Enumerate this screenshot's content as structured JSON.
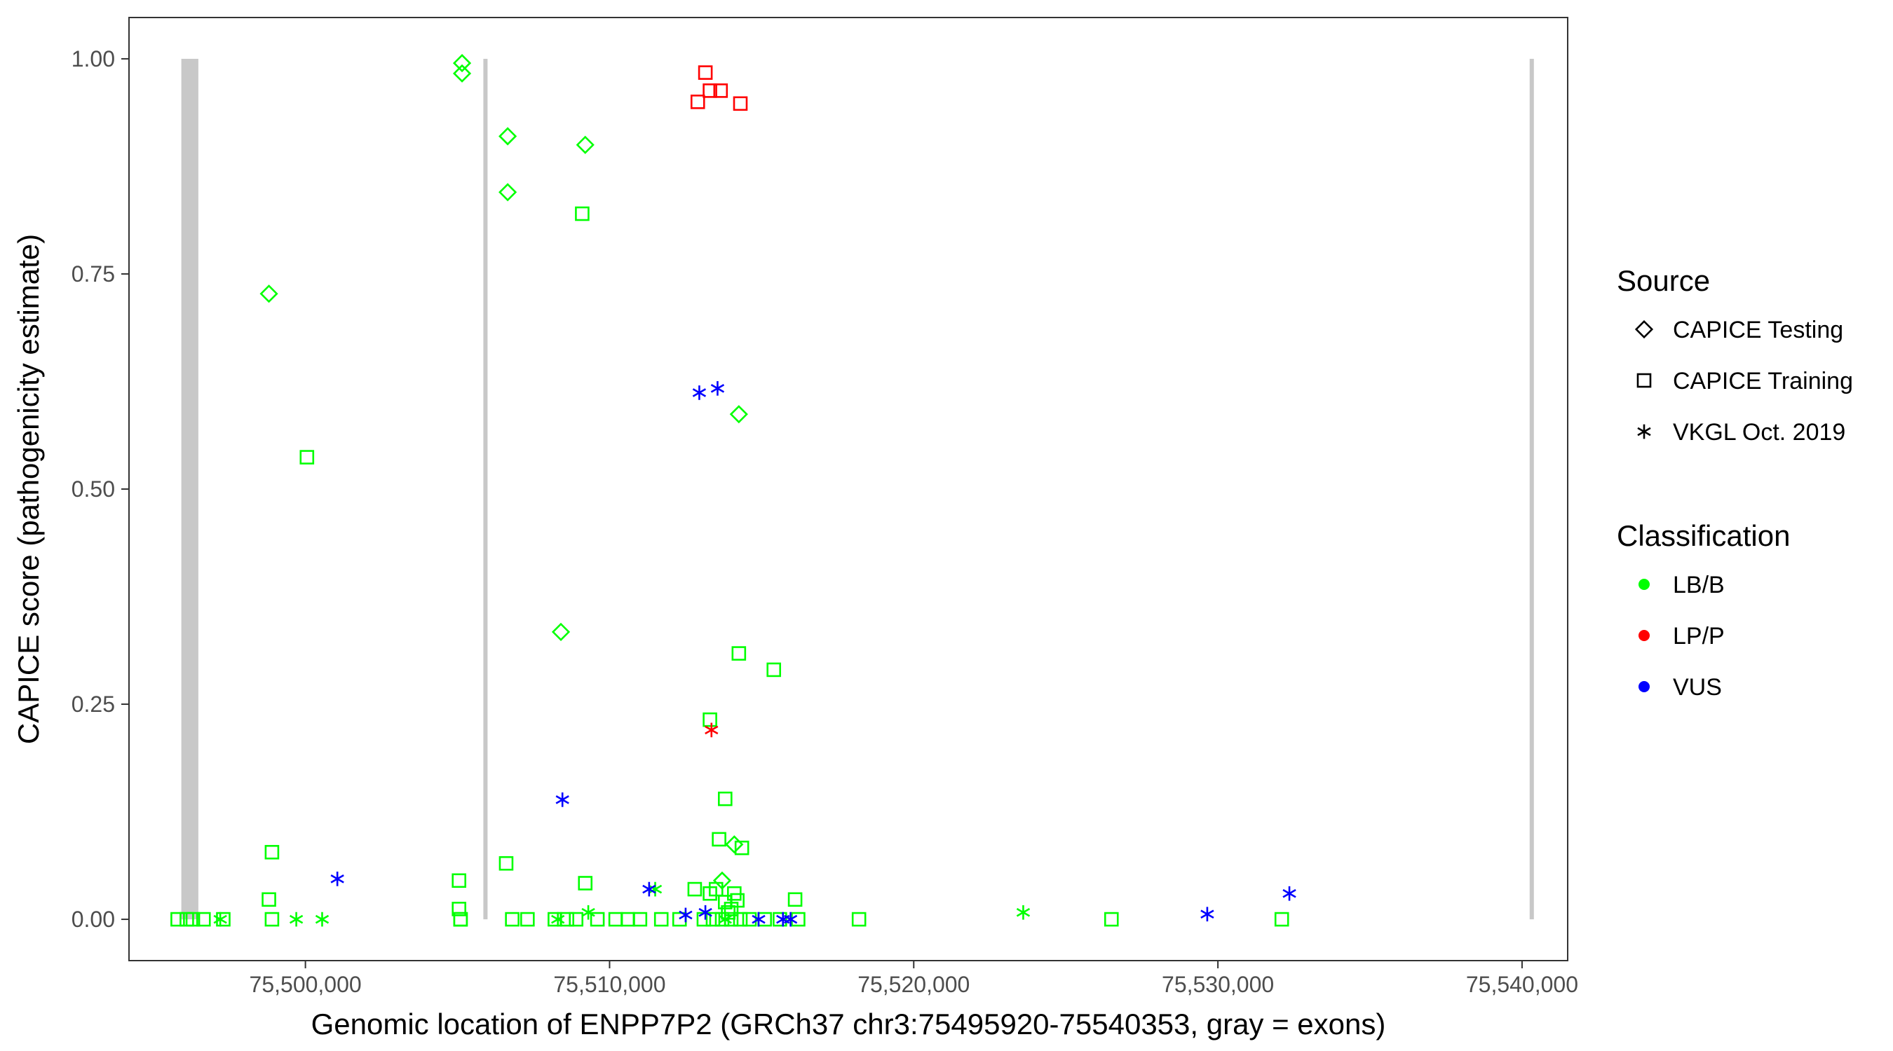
{
  "chart_data": {
    "type": "scatter",
    "title": "",
    "xlabel": "Genomic location of ENPP7P2 (GRCh37 chr3:75495920-75540353, gray = exons)",
    "ylabel": "CAPICE score (pathogenicity estimate)",
    "xlim": [
      75494200,
      75541500
    ],
    "ylim": [
      -0.048,
      1.048
    ],
    "x_ticks": [
      75500000,
      75510000,
      75520000,
      75530000,
      75540000
    ],
    "x_tick_labels": [
      "75,500,000",
      "75,510,000",
      "75,520,000",
      "75,530,000",
      "75,540,000"
    ],
    "y_ticks": [
      0,
      0.25,
      0.5,
      0.75,
      1.0
    ],
    "y_tick_labels": [
      "0.00",
      "0.25",
      "0.50",
      "0.75",
      "1.00"
    ],
    "grid": false,
    "legend_position": "right",
    "exons": [
      [
        75495920,
        75496480
      ],
      [
        75505850,
        75505950
      ],
      [
        75540250,
        75540353
      ]
    ],
    "exon_color": "#c8c8c8",
    "legend": {
      "source_title": "Source",
      "source_items": [
        {
          "label": "CAPICE Testing",
          "shape": "diamond"
        },
        {
          "label": "CAPICE Training",
          "shape": "square"
        },
        {
          "label": "VKGL Oct. 2019",
          "shape": "asterisk"
        }
      ],
      "class_title": "Classification",
      "class_items": [
        {
          "label": "LB/B",
          "color": "#00ff00"
        },
        {
          "label": "LP/P",
          "color": "#ff0000"
        },
        {
          "label": "VUS",
          "color": "#0000ff"
        }
      ]
    },
    "series": [
      {
        "source": "CAPICE Testing",
        "classification": "LB/B",
        "x": [
          75505150,
          75505150,
          75506650,
          75509200,
          75506650,
          75498800,
          75514250,
          75508400,
          75513700,
          75514100
        ],
        "y": [
          0.995,
          0.983,
          0.91,
          0.9,
          0.845,
          0.727,
          0.587,
          0.334,
          0.045,
          0.087
        ]
      },
      {
        "source": "CAPICE Training",
        "classification": "LB/B",
        "x": [
          75509100,
          75500050,
          75514250,
          75515400,
          75513300,
          75513800,
          75513600,
          75514350,
          75498900,
          75506600,
          75505050,
          75509200,
          75512800,
          75513500,
          75513300,
          75514100,
          75498800,
          75516100,
          75505050,
          75514200,
          75513800,
          75514000,
          75513900,
          75505100,
          75495800,
          75496100,
          75496300,
          75496650,
          75497300,
          75498900,
          75505100,
          75506800,
          75507300,
          75508200,
          75508600,
          75508900,
          75509600,
          75510200,
          75510600,
          75511000,
          75511700,
          75512300,
          75513100,
          75513400,
          75513700,
          75514000,
          75514300,
          75514600,
          75515100,
          75515600,
          75516200,
          75518200,
          75526500,
          75532100
        ],
        "y": [
          0.82,
          0.537,
          0.309,
          0.29,
          0.232,
          0.14,
          0.093,
          0.083,
          0.078,
          0.065,
          0.045,
          0.042,
          0.035,
          0.035,
          0.03,
          0.03,
          0.023,
          0.023,
          0.012,
          0.022,
          0.02,
          0.012,
          0.008,
          0.0,
          0.0,
          0.0,
          0.0,
          0.0,
          0.0,
          0.0,
          0.0,
          0.0,
          0.0,
          0.0,
          0.0,
          0.0,
          0.0,
          0.0,
          0.0,
          0.0,
          0.0,
          0.0,
          0.0,
          0.0,
          0.0,
          0.0,
          0.0,
          0.0,
          0.0,
          0.0,
          0.0,
          0.0,
          0.0,
          0.0
        ]
      },
      {
        "source": "CAPICE Training",
        "classification": "LP/P",
        "x": [
          75513150,
          75513300,
          75513650,
          75512900,
          75514300
        ],
        "y": [
          0.984,
          0.963,
          0.963,
          0.95,
          0.948
        ]
      },
      {
        "source": "VKGL Oct. 2019",
        "classification": "LB/B",
        "x": [
          75497200,
          75499700,
          75500550,
          75509300,
          75511500,
          75523600,
          75508300,
          75513800
        ],
        "y": [
          0.0,
          0.0,
          0.0,
          0.008,
          0.035,
          0.008,
          0.0,
          0.0
        ]
      },
      {
        "source": "VKGL Oct. 2019",
        "classification": "LP/P",
        "x": [
          75513350
        ],
        "y": [
          0.22
        ]
      },
      {
        "source": "VKGL Oct. 2019",
        "classification": "VUS",
        "x": [
          75512950,
          75513550,
          75508450,
          75501050,
          75511300,
          75513150,
          75512500,
          75514900,
          75515700,
          75515950,
          75529650,
          75532350
        ],
        "y": [
          0.612,
          0.617,
          0.139,
          0.047,
          0.035,
          0.008,
          0.005,
          0.0,
          0.0,
          0.0,
          0.006,
          0.03
        ]
      }
    ]
  }
}
